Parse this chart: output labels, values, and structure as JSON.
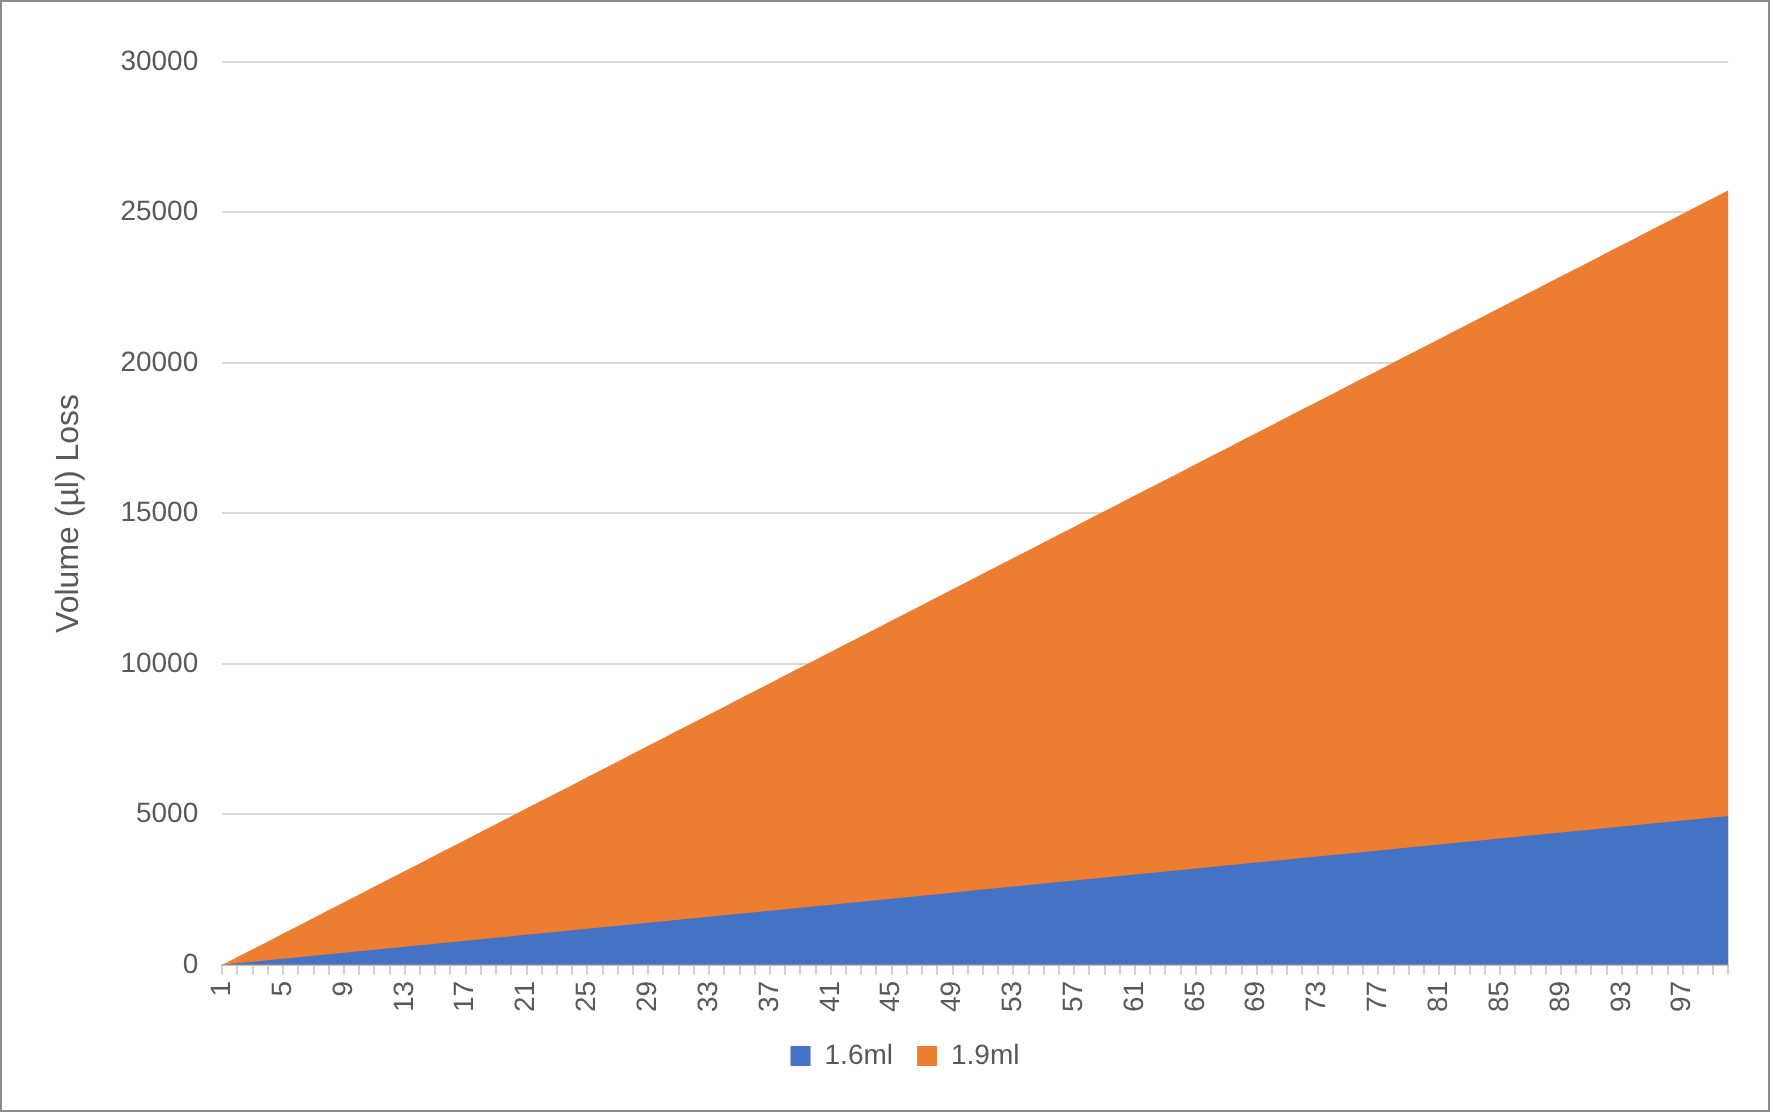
{
  "chart_data": {
    "type": "area",
    "ylabel": "Volume (µl) Loss",
    "categories": [
      "1",
      null,
      null,
      null,
      "5",
      null,
      null,
      null,
      "9",
      null,
      null,
      null,
      "13",
      null,
      null,
      null,
      "17",
      null,
      null,
      null,
      "21",
      null,
      null,
      null,
      "25",
      null,
      null,
      null,
      "29",
      null,
      null,
      null,
      "33",
      null,
      null,
      null,
      "37",
      null,
      null,
      null,
      "41",
      null,
      null,
      null,
      "45",
      null,
      null,
      null,
      "49",
      null,
      null,
      null,
      "53",
      null,
      null,
      null,
      "57",
      null,
      null,
      null,
      "61",
      null,
      null,
      null,
      "65",
      null,
      null,
      null,
      "69",
      null,
      null,
      null,
      "73",
      null,
      null,
      null,
      "77",
      null,
      null,
      null,
      "81",
      null,
      null,
      null,
      "85",
      null,
      null,
      null,
      "89",
      null,
      null,
      null,
      "93",
      null,
      null,
      null,
      "97",
      null,
      null,
      null
    ],
    "series": [
      {
        "name": "1.6ml",
        "color": "#4472c4",
        "values": [
          0,
          50,
          100,
          150,
          200,
          250,
          300,
          350,
          400,
          450,
          500,
          550,
          600,
          650,
          700,
          750,
          800,
          850,
          900,
          950,
          1000,
          1050,
          1100,
          1150,
          1200,
          1250,
          1300,
          1350,
          1400,
          1450,
          1500,
          1550,
          1600,
          1650,
          1700,
          1750,
          1800,
          1850,
          1900,
          1950,
          2000,
          2050,
          2100,
          2150,
          2200,
          2250,
          2300,
          2350,
          2400,
          2450,
          2500,
          2550,
          2600,
          2650,
          2700,
          2750,
          2800,
          2850,
          2900,
          2950,
          3000,
          3050,
          3100,
          3150,
          3200,
          3250,
          3300,
          3350,
          3400,
          3450,
          3500,
          3550,
          3600,
          3650,
          3700,
          3750,
          3800,
          3850,
          3900,
          3950,
          4000,
          4050,
          4100,
          4150,
          4200,
          4250,
          4300,
          4350,
          4400,
          4450,
          4500,
          4550,
          4600,
          4650,
          4700,
          4750,
          4800,
          4850,
          4900,
          4950
        ]
      },
      {
        "name": "1.9ml",
        "color": "#ed7d31",
        "values": [
          0,
          260,
          520,
          780,
          1040,
          1300,
          1560,
          1820,
          2080,
          2340,
          2600,
          2860,
          3120,
          3380,
          3640,
          3900,
          4160,
          4420,
          4680,
          4940,
          5200,
          5460,
          5720,
          5980,
          6240,
          6500,
          6760,
          7020,
          7280,
          7540,
          7800,
          8060,
          8320,
          8580,
          8840,
          9100,
          9360,
          9620,
          9880,
          10140,
          10400,
          10660,
          10920,
          11180,
          11440,
          11700,
          11960,
          12220,
          12480,
          12740,
          13000,
          13260,
          13520,
          13780,
          14040,
          14300,
          14560,
          14820,
          15080,
          15340,
          15600,
          15860,
          16120,
          16380,
          16640,
          16900,
          17160,
          17420,
          17680,
          17940,
          18200,
          18460,
          18720,
          18980,
          19240,
          19500,
          19760,
          20020,
          20280,
          20540,
          20800,
          21060,
          21320,
          21580,
          21840,
          22100,
          22360,
          22620,
          22880,
          23140,
          23400,
          23660,
          23920,
          24180,
          24440,
          24700,
          24960,
          25220,
          25480,
          25740
        ]
      }
    ],
    "ylim": [
      0,
      30000
    ],
    "yticks": [
      0,
      5000,
      10000,
      15000,
      20000,
      25000,
      30000
    ],
    "grid": "y",
    "legend": "bottom"
  }
}
